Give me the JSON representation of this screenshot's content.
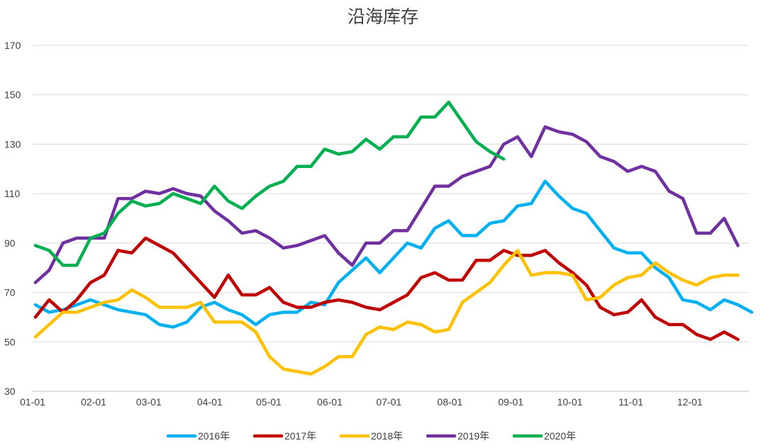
{
  "chart_data": {
    "type": "line",
    "title": "沿海库存",
    "xlabel": "",
    "ylabel": "",
    "ylim": [
      30,
      170
    ],
    "yticks": [
      30,
      50,
      70,
      90,
      110,
      130,
      150,
      170
    ],
    "xlim": [
      1,
      53
    ],
    "xticks": [
      {
        "x": 1,
        "label": "01-01"
      },
      {
        "x": 5.43,
        "label": "02-01"
      },
      {
        "x": 9.43,
        "label": "03-01"
      },
      {
        "x": 13.86,
        "label": "04-01"
      },
      {
        "x": 18.14,
        "label": "05-01"
      },
      {
        "x": 22.57,
        "label": "06-01"
      },
      {
        "x": 26.86,
        "label": "07-01"
      },
      {
        "x": 31.29,
        "label": "08-01"
      },
      {
        "x": 35.71,
        "label": "09-01"
      },
      {
        "x": 40,
        "label": "10-01"
      },
      {
        "x": 44.43,
        "label": "11-01"
      },
      {
        "x": 48.71,
        "label": "12-01"
      }
    ],
    "grid": true,
    "legend_position": "bottom",
    "series": [
      {
        "name": "2016年",
        "color": "#00B0F0",
        "x_start": 1.2,
        "values": [
          65,
          62,
          63,
          65,
          67,
          65,
          63,
          62,
          61,
          57,
          56,
          58,
          64,
          66,
          63,
          61,
          57,
          61,
          62,
          62,
          66,
          65,
          74,
          79,
          84,
          78,
          84,
          90,
          88,
          96,
          99,
          93,
          93,
          98,
          99,
          105,
          106,
          115,
          109,
          104,
          102,
          95,
          88,
          86,
          86,
          80,
          76,
          67,
          66,
          63,
          67,
          65,
          62
        ]
      },
      {
        "name": "2017年",
        "color": "#C00000",
        "x_start": 1.2,
        "values": [
          60,
          67,
          62,
          67,
          74,
          77,
          87,
          86,
          92,
          89,
          86,
          80,
          74,
          68,
          77,
          69,
          69,
          72,
          66,
          64,
          64,
          66,
          67,
          66,
          64,
          63,
          66,
          69,
          76,
          78,
          75,
          75,
          83,
          83,
          87,
          85,
          85,
          87,
          82,
          78,
          73,
          64,
          61,
          62,
          67,
          60,
          57,
          57,
          53,
          51,
          54,
          51
        ]
      },
      {
        "name": "2018年",
        "color": "#FFC000",
        "x_start": 1.2,
        "values": [
          52,
          57,
          62,
          62,
          64,
          66,
          67,
          71,
          68,
          64,
          64,
          64,
          66,
          58,
          58,
          58,
          54,
          44,
          39,
          38,
          37,
          40,
          44,
          44,
          53,
          56,
          55,
          58,
          57,
          54,
          55,
          66,
          70,
          74,
          81,
          87,
          77,
          78,
          78,
          77,
          67,
          68,
          73,
          76,
          77,
          82,
          78,
          75,
          73,
          76,
          77,
          77
        ]
      },
      {
        "name": "2019年",
        "color": "#7030A0",
        "x_start": 1.2,
        "values": [
          74,
          79,
          90,
          92,
          92,
          92,
          108,
          108,
          111,
          110,
          112,
          110,
          109,
          103,
          99,
          94,
          95,
          92,
          88,
          89,
          91,
          93,
          86,
          81,
          90,
          90,
          95,
          95,
          104,
          113,
          113,
          117,
          119,
          121,
          130,
          133,
          125,
          137,
          135,
          134,
          131,
          125,
          123,
          119,
          121,
          119,
          111,
          108,
          94,
          94,
          100,
          89
        ]
      },
      {
        "name": "2020年",
        "color": "#00B050",
        "x_start": 1.2,
        "values": [
          89,
          87,
          81,
          81,
          92,
          94,
          102,
          107,
          105,
          106,
          110,
          108,
          106,
          113,
          107,
          104,
          109,
          113,
          115,
          121,
          121,
          128,
          126,
          127,
          132,
          128,
          133,
          133,
          141,
          141,
          147,
          139,
          131,
          127,
          124
        ]
      }
    ]
  }
}
